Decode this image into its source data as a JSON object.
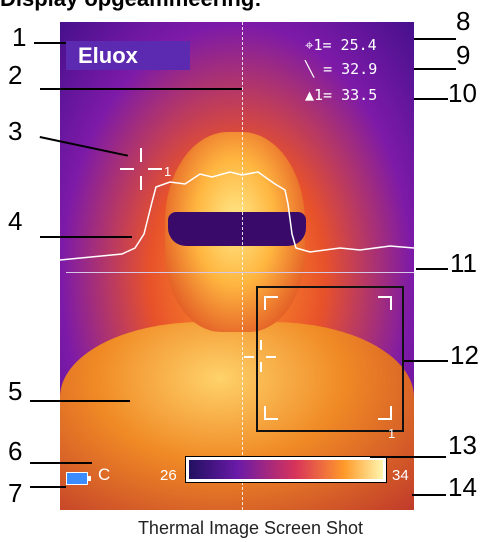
{
  "header": {
    "title": "Display opgeammeering:"
  },
  "brand": {
    "logo": "Eluox"
  },
  "readouts": {
    "spot_label": "1=",
    "spot_value": "25.4",
    "line_label": "=",
    "line_value": "32.9",
    "max_label": "1=",
    "max_value": "33.5"
  },
  "marker_labels": {
    "spot": "1",
    "roi": "1"
  },
  "scale": {
    "min": "26",
    "max": "34",
    "unit": "C"
  },
  "callouts": [
    "1",
    "2",
    "3",
    "4",
    "5",
    "6",
    "7",
    "8",
    "9",
    "10",
    "11",
    "12",
    "13",
    "14"
  ],
  "caption": "Thermal Image Screen Shot",
  "colors": {
    "background_purple": "#46108c",
    "hot": "#ffe98a",
    "brand_bg": "#5c2ab0"
  },
  "icons": [
    "crosshair-icon",
    "line-icon",
    "triangle-icon",
    "battery-icon"
  ]
}
